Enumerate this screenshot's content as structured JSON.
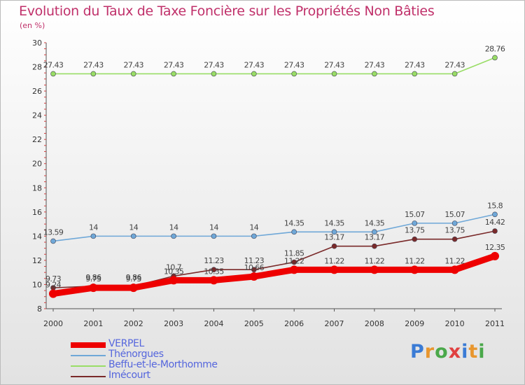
{
  "title": "Evolution du Taux de Taxe Foncière sur les Propriétés Non Bâties",
  "subtitle": "(en %)",
  "logo": {
    "text": "Proxiti",
    "letter_colors": [
      "#3a7bd5",
      "#e8962e",
      "#4aa84a",
      "#e04040",
      "#3a7bd5",
      "#e8962e",
      "#4aa84a"
    ]
  },
  "chart_data": {
    "type": "line",
    "title": "Evolution du Taux de Taxe Foncière sur les Propriétés Non Bâties",
    "ylabel": "(en %)",
    "xlabel": "",
    "categories": [
      "2000",
      "2001",
      "2002",
      "2003",
      "2004",
      "2005",
      "2006",
      "2007",
      "2008",
      "2009",
      "2010",
      "2011"
    ],
    "ylim": [
      8,
      30
    ],
    "yticks": [
      8,
      10,
      12,
      14,
      16,
      18,
      20,
      22,
      24,
      26,
      28,
      30
    ],
    "grid": false,
    "legend_position": "bottom-left",
    "series": [
      {
        "name": "VERPEL",
        "color": "#ee0000",
        "width": "thick",
        "values": [
          9.24,
          9.73,
          9.73,
          10.35,
          10.35,
          10.66,
          11.22,
          11.22,
          11.22,
          11.22,
          11.22,
          12.35
        ],
        "labels": [
          "9.24",
          "9.73",
          "9.73",
          "10.35",
          "10.35",
          "10.66",
          "11.22",
          "11.22",
          "11.22",
          "11.22",
          "11.22",
          "12.35"
        ]
      },
      {
        "name": "Thénorgues",
        "color": "#6fa8d8",
        "width": "thin",
        "values": [
          13.59,
          14,
          14,
          14,
          14,
          14,
          14.35,
          14.35,
          14.35,
          15.07,
          15.07,
          15.8
        ],
        "labels": [
          "13.59",
          "14",
          "14",
          "14",
          "14",
          "14",
          "14.35",
          "14.35",
          "14.35",
          "15.07",
          "15.07",
          "15.8"
        ]
      },
      {
        "name": "Beffu-et-le-Morthomme",
        "color": "#99dd66",
        "width": "thin",
        "values": [
          27.43,
          27.43,
          27.43,
          27.43,
          27.43,
          27.43,
          27.43,
          27.43,
          27.43,
          27.43,
          27.43,
          28.76
        ],
        "labels": [
          "27.43",
          "27.43",
          "27.43",
          "27.43",
          "27.43",
          "27.43",
          "27.43",
          "27.43",
          "27.43",
          "27.43",
          "27.43",
          "28.76"
        ]
      },
      {
        "name": "Imécourt",
        "color": "#7a2a2a",
        "width": "thin",
        "values": [
          9.73,
          9.86,
          9.86,
          10.7,
          11.23,
          11.23,
          11.85,
          13.17,
          13.17,
          13.75,
          13.75,
          14.42
        ],
        "labels": [
          "9.73",
          "9.86",
          "9.86",
          "10.7",
          "11.23",
          "11.23",
          "11.85",
          "13.17",
          "13.17",
          "13.75",
          "13.75",
          "14.42"
        ]
      }
    ]
  }
}
